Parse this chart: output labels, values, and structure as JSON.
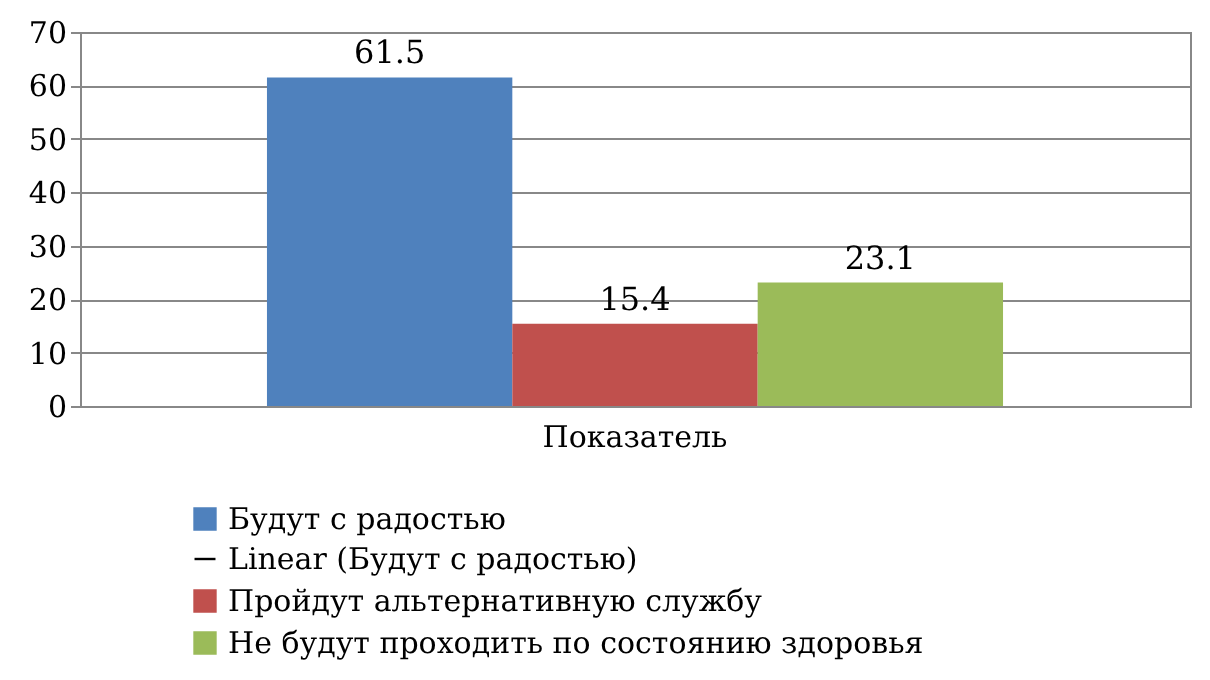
{
  "chart_data": {
    "type": "bar",
    "categories": [
      "Показатель"
    ],
    "series": [
      {
        "name": "Будут с радостью",
        "color": "#4f81bd",
        "values": [
          61.5
        ],
        "value_labels": [
          "61.5"
        ]
      },
      {
        "name": "Linear (Будут с радостью)",
        "type": "line",
        "color": "#000000",
        "values": [
          null
        ]
      },
      {
        "name": "Пройдут альтернативную службу",
        "color": "#c0504d",
        "values": [
          15.4
        ],
        "value_labels": [
          "15.4"
        ]
      },
      {
        "name": "Не будут проходить  по состоянию здоровья",
        "color": "#9bbb59",
        "values": [
          23.1
        ],
        "value_labels": [
          "23.1"
        ]
      }
    ],
    "ylim": [
      0,
      70
    ],
    "yticks": [
      0,
      10,
      20,
      30,
      40,
      50,
      60,
      70
    ],
    "grid": "y",
    "legend": "bottom"
  }
}
